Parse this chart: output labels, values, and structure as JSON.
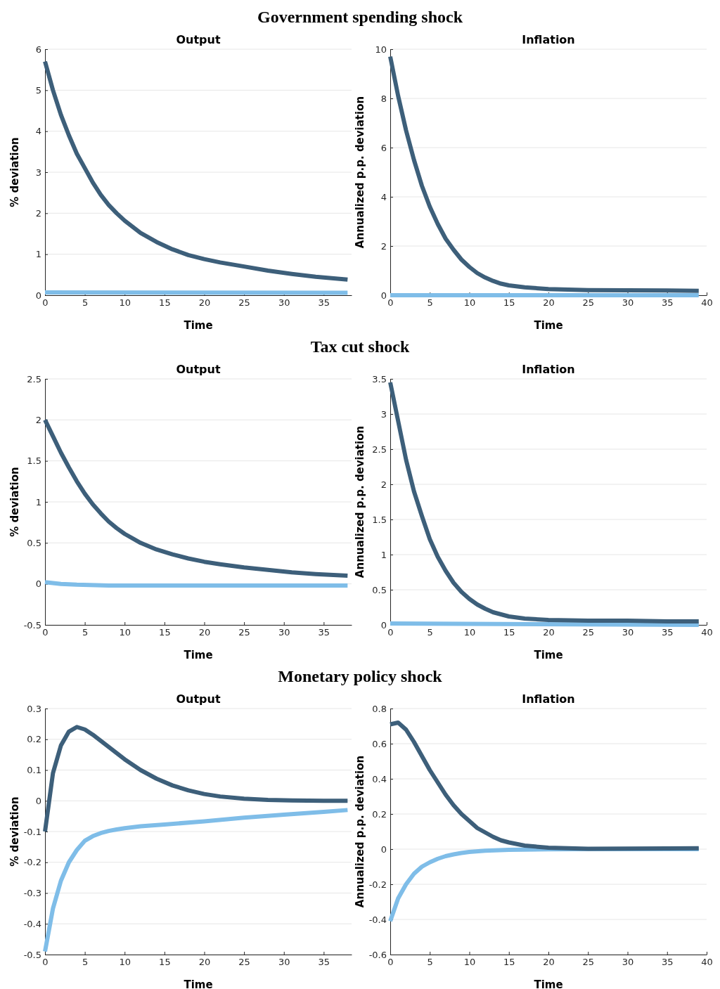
{
  "chart_data": [
    {
      "type": "line",
      "title": "Output",
      "annotations": [
        "Government spending shock"
      ],
      "xlabel": "Time",
      "ylabel": "% deviation",
      "xlim": [
        0,
        38.5
      ],
      "xticks": [
        0,
        5,
        10,
        15,
        20,
        25,
        30,
        35
      ],
      "ylim": [
        0,
        6
      ],
      "yticks": [
        0,
        1,
        2,
        3,
        4,
        5,
        6
      ],
      "grid": "y",
      "series": [
        {
          "color": "#7fbde8",
          "x": [
            0,
            38
          ],
          "values": [
            0.07,
            0.06
          ]
        },
        {
          "color": "#3d5f7a",
          "x": [
            0,
            1,
            2,
            3,
            4,
            5,
            6,
            7,
            8,
            9,
            10,
            12,
            14,
            16,
            18,
            20,
            22,
            25,
            28,
            31,
            34,
            38
          ],
          "values": [
            5.7,
            5.0,
            4.4,
            3.9,
            3.45,
            3.1,
            2.75,
            2.45,
            2.2,
            2.0,
            1.82,
            1.52,
            1.3,
            1.12,
            0.98,
            0.88,
            0.8,
            0.7,
            0.6,
            0.52,
            0.45,
            0.38
          ]
        }
      ]
    },
    {
      "type": "line",
      "title": "Inflation",
      "xlabel": "Time",
      "ylabel": "Annualized p.p. deviation",
      "xlim": [
        0,
        40
      ],
      "xticks": [
        0,
        5,
        10,
        15,
        20,
        25,
        30,
        35,
        40
      ],
      "ylim": [
        0,
        10
      ],
      "yticks": [
        0,
        2,
        4,
        6,
        8,
        10
      ],
      "grid": "y",
      "series": [
        {
          "color": "#7fbde8",
          "x": [
            0,
            39
          ],
          "values": [
            0,
            0
          ]
        },
        {
          "color": "#3d5f7a",
          "x": [
            0,
            1,
            2,
            3,
            4,
            5,
            6,
            7,
            8,
            9,
            10,
            11,
            12,
            13,
            14,
            15,
            17,
            20,
            25,
            30,
            35,
            39
          ],
          "values": [
            9.7,
            8.1,
            6.7,
            5.5,
            4.45,
            3.6,
            2.9,
            2.3,
            1.85,
            1.45,
            1.15,
            0.9,
            0.72,
            0.58,
            0.47,
            0.4,
            0.32,
            0.25,
            0.21,
            0.2,
            0.19,
            0.18
          ]
        }
      ]
    },
    {
      "type": "line",
      "title": "Output",
      "annotations": [
        "Tax cut shock"
      ],
      "xlabel": "Time",
      "ylabel": "% deviation",
      "xlim": [
        0,
        38.5
      ],
      "xticks": [
        0,
        5,
        10,
        15,
        20,
        25,
        30,
        35
      ],
      "ylim": [
        -0.5,
        2.5
      ],
      "yticks": [
        -0.5,
        0,
        0.5,
        1,
        1.5,
        2,
        2.5
      ],
      "grid": "y",
      "series": [
        {
          "color": "#7fbde8",
          "x": [
            0,
            2,
            4,
            8,
            38
          ],
          "values": [
            0.02,
            0,
            -0.01,
            -0.02,
            -0.02
          ]
        },
        {
          "color": "#3d5f7a",
          "x": [
            0,
            1,
            2,
            3,
            4,
            5,
            6,
            7,
            8,
            9,
            10,
            12,
            14,
            16,
            18,
            20,
            22,
            25,
            28,
            31,
            34,
            38
          ],
          "values": [
            2.0,
            1.8,
            1.6,
            1.42,
            1.25,
            1.1,
            0.97,
            0.86,
            0.76,
            0.68,
            0.61,
            0.5,
            0.42,
            0.36,
            0.31,
            0.27,
            0.24,
            0.2,
            0.17,
            0.14,
            0.12,
            0.1
          ]
        }
      ]
    },
    {
      "type": "line",
      "title": "Inflation",
      "xlabel": "Time",
      "ylabel": "Annualized p.p. deviation",
      "xlim": [
        0,
        40
      ],
      "xticks": [
        0,
        5,
        10,
        15,
        20,
        25,
        30,
        35,
        40
      ],
      "ylim": [
        0,
        3.5
      ],
      "yticks": [
        0,
        0.5,
        1,
        1.5,
        2,
        2.5,
        3,
        3.5
      ],
      "grid": "y",
      "series": [
        {
          "color": "#7fbde8",
          "x": [
            0,
            39
          ],
          "values": [
            0.02,
            0
          ]
        },
        {
          "color": "#3d5f7a",
          "x": [
            0,
            1,
            2,
            3,
            4,
            5,
            6,
            7,
            8,
            9,
            10,
            11,
            12,
            13,
            14,
            15,
            17,
            20,
            25,
            30,
            35,
            39
          ],
          "values": [
            3.45,
            2.9,
            2.35,
            1.9,
            1.55,
            1.22,
            0.97,
            0.77,
            0.6,
            0.47,
            0.37,
            0.29,
            0.23,
            0.18,
            0.15,
            0.12,
            0.09,
            0.07,
            0.06,
            0.06,
            0.05,
            0.05
          ]
        }
      ]
    },
    {
      "type": "line",
      "title": "Output",
      "annotations": [
        "Monetary policy shock"
      ],
      "xlabel": "Time",
      "ylabel": "% deviation",
      "xlim": [
        0,
        38.5
      ],
      "xticks": [
        0,
        5,
        10,
        15,
        20,
        25,
        30,
        35
      ],
      "ylim": [
        -0.5,
        0.3
      ],
      "yticks": [
        -0.5,
        -0.4,
        -0.3,
        -0.2,
        -0.1,
        0,
        0.1,
        0.2,
        0.3
      ],
      "grid": "y",
      "series": [
        {
          "color": "#7fbde8",
          "x": [
            0,
            1,
            2,
            3,
            4,
            5,
            6,
            7,
            8,
            9,
            10,
            12,
            15,
            20,
            25,
            30,
            35,
            38
          ],
          "values": [
            -0.49,
            -0.35,
            -0.26,
            -0.2,
            -0.16,
            -0.13,
            -0.115,
            -0.105,
            -0.098,
            -0.093,
            -0.089,
            -0.083,
            -0.077,
            -0.067,
            -0.055,
            -0.045,
            -0.036,
            -0.03
          ]
        },
        {
          "color": "#3d5f7a",
          "x": [
            0,
            1,
            2,
            3,
            4,
            5,
            6,
            7,
            8,
            9,
            10,
            12,
            14,
            16,
            18,
            20,
            22,
            25,
            28,
            31,
            35,
            38
          ],
          "values": [
            -0.1,
            0.09,
            0.18,
            0.225,
            0.24,
            0.232,
            0.215,
            0.195,
            0.175,
            0.155,
            0.135,
            0.1,
            0.072,
            0.05,
            0.034,
            0.022,
            0.014,
            0.007,
            0.003,
            0.001,
            0,
            0
          ]
        }
      ]
    },
    {
      "type": "line",
      "title": "Inflation",
      "xlabel": "Time",
      "ylabel": "Annualized p.p. deviation",
      "xlim": [
        0,
        40
      ],
      "xticks": [
        0,
        5,
        10,
        15,
        20,
        25,
        30,
        35,
        40
      ],
      "ylim": [
        -0.6,
        0.8
      ],
      "yticks": [
        -0.6,
        -0.4,
        -0.2,
        0,
        0.2,
        0.4,
        0.6,
        0.8
      ],
      "grid": "y",
      "series": [
        {
          "color": "#7fbde8",
          "x": [
            0,
            1,
            2,
            3,
            4,
            5,
            6,
            7,
            8,
            9,
            10,
            12,
            15,
            20,
            25,
            39
          ],
          "values": [
            -0.41,
            -0.28,
            -0.2,
            -0.14,
            -0.1,
            -0.075,
            -0.055,
            -0.04,
            -0.03,
            -0.022,
            -0.016,
            -0.009,
            -0.004,
            -0.001,
            0,
            0
          ]
        },
        {
          "color": "#3d5f7a",
          "x": [
            0,
            1,
            2,
            3,
            4,
            5,
            6,
            7,
            8,
            9,
            10,
            11,
            12,
            13,
            14,
            15,
            17,
            20,
            25,
            30,
            35,
            39
          ],
          "values": [
            0.71,
            0.72,
            0.68,
            0.61,
            0.53,
            0.45,
            0.38,
            0.31,
            0.25,
            0.2,
            0.16,
            0.12,
            0.095,
            0.07,
            0.05,
            0.038,
            0.02,
            0.008,
            0.002,
            0.003,
            0.004,
            0.005
          ]
        }
      ]
    }
  ]
}
